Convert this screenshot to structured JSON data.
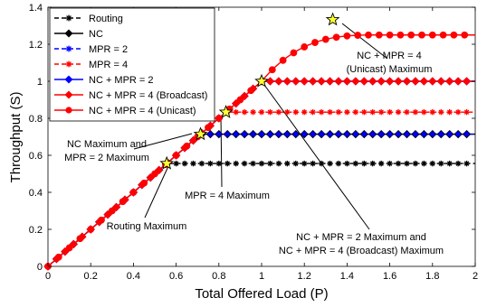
{
  "chart_data": {
    "type": "line",
    "xlabel": "Total Offered Load (P)",
    "ylabel": "Throughput (S)",
    "xlim": [
      0,
      2
    ],
    "ylim": [
      0,
      1.4
    ],
    "xticks": [
      "0",
      "0.2",
      "0.4",
      "0.6",
      "0.8",
      "1",
      "1.2",
      "1.4",
      "1.6",
      "1.8",
      "2"
    ],
    "yticks": [
      "0",
      "0.2",
      "0.4",
      "0.6",
      "0.8",
      "1",
      "1.2",
      "1.4"
    ],
    "grid": false,
    "legend_position": "top-left",
    "series": [
      {
        "name": "Routing",
        "color": "#000000",
        "dash": "dashed",
        "marker": "asterisk",
        "saturation": 0.5556,
        "saturation_x": 0.5556
      },
      {
        "name": "NC",
        "color": "#000000",
        "dash": "solid",
        "marker": "diamond",
        "saturation": 0.7143,
        "saturation_x": 0.7143
      },
      {
        "name": "MPR = 2",
        "color": "#0000ff",
        "dash": "dashed",
        "marker": "asterisk",
        "saturation": 0.7143,
        "saturation_x": 0.7143
      },
      {
        "name": "MPR = 4",
        "color": "#ff0000",
        "dash": "dashed",
        "marker": "asterisk",
        "saturation": 0.8333,
        "saturation_x": 0.8333
      },
      {
        "name": "NC + MPR = 2",
        "color": "#0000ff",
        "dash": "solid",
        "marker": "diamond",
        "saturation": 1.0,
        "saturation_x": 1.0
      },
      {
        "name": "NC + MPR = 4 (Broadcast)",
        "color": "#ff0000",
        "dash": "solid",
        "marker": "diamond",
        "saturation": 1.0,
        "saturation_x": 1.0
      },
      {
        "name": "NC + MPR = 4 (Unicast)",
        "color": "#ff0000",
        "dash": "solid",
        "marker": "circle",
        "saturation": 1.25,
        "peak": [
          1.333,
          1.333
        ]
      }
    ],
    "maxima": [
      {
        "label": "Routing Maximum",
        "x": 0.556,
        "y": 0.556
      },
      {
        "label": "NC Maximum and MPR = 2 Maximum",
        "x": 0.714,
        "y": 0.714
      },
      {
        "label": "MPR = 4 Maximum",
        "x": 0.833,
        "y": 0.833
      },
      {
        "label": "NC + MPR = 2 Maximum and NC + MPR = 4 (Broadcast) Maximum",
        "x": 1.0,
        "y": 1.0
      },
      {
        "label": "NC + MPR = 4 (Unicast) Maximum",
        "x": 1.333,
        "y": 1.333
      }
    ],
    "annotations": [
      {
        "lines": [
          "NC Maximum and",
          "MPR = 2 Maximum"
        ]
      },
      {
        "lines": [
          "Routing Maximum"
        ]
      },
      {
        "lines": [
          "MPR = 4 Maximum"
        ]
      },
      {
        "lines": [
          "NC + MPR = 2 Maximum and",
          "NC + MPR = 4 (Broadcast) Maximum"
        ]
      },
      {
        "lines": [
          "NC + MPR = 4",
          "(Unicast) Maximum"
        ]
      }
    ]
  }
}
